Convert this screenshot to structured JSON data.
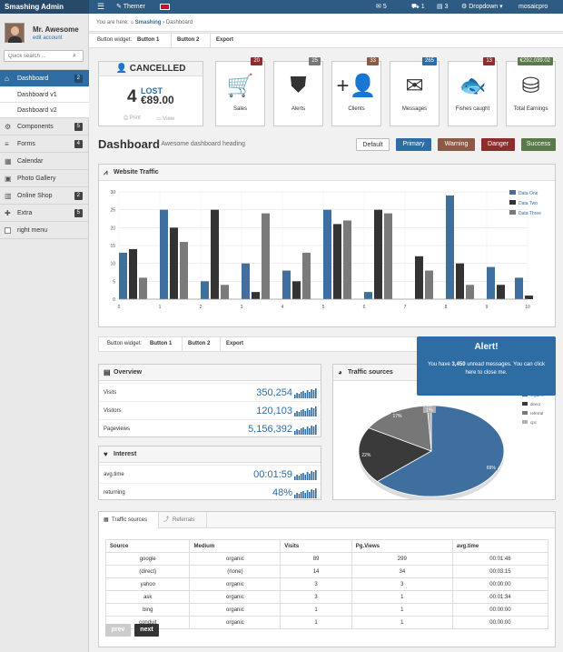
{
  "topbar": {
    "brand": "Smashing Admin",
    "themer": "Themer",
    "mail_count": "5",
    "cart_count": "1",
    "doc_count": "3",
    "dropdown": "Dropdown",
    "user": "mosaicpro"
  },
  "sidebar": {
    "user_name": "Mr. Awesome",
    "edit_account": "edit account",
    "search_placeholder": "Quick search ...",
    "items": [
      {
        "label": "Dashboard",
        "count": "2"
      },
      {
        "label": "Components",
        "count": "5"
      },
      {
        "label": "Forms",
        "count": "4"
      },
      {
        "label": "Calendar",
        "count": ""
      },
      {
        "label": "Photo Gallery",
        "count": ""
      },
      {
        "label": "Online Shop",
        "count": "2"
      },
      {
        "label": "Extra",
        "count": "5"
      }
    ],
    "subitems": [
      "Dashboard v1",
      "Dashboard v2"
    ],
    "right_menu": "right menu"
  },
  "breadcrumb": {
    "prefix": "You are here:",
    "home": "Smashing",
    "current": "Dashboard"
  },
  "button_widget": {
    "label": "Button widget:",
    "b1": "Button 1",
    "b2": "Button 2",
    "b3": "Export"
  },
  "cancelled": {
    "title": "CANCELLED",
    "number": "4",
    "lost": "LOST",
    "amount": "€89.00",
    "print": "Print",
    "view": "View"
  },
  "tiles": [
    {
      "label": "Sales",
      "badge": "20",
      "icon": "cart-icon"
    },
    {
      "label": "Alerts",
      "badge": "25",
      "icon": "shield-icon"
    },
    {
      "label": "Clients",
      "badge": "33",
      "icon": "user-add-icon"
    },
    {
      "label": "Messages",
      "badge": "265",
      "icon": "envelope-icon"
    },
    {
      "label": "Fishes caught",
      "badge": "13",
      "icon": "fish-icon"
    },
    {
      "label": "Total Earnings",
      "badge": "€292,039.02",
      "icon": "coins-icon"
    }
  ],
  "heading": {
    "title": "Dashboard",
    "subtitle": "| Awesome dashboard heading"
  },
  "pills": [
    {
      "label": "Default",
      "color": "#ffffff"
    },
    {
      "label": "Primary",
      "color": "#2e6da4"
    },
    {
      "label": "Warning",
      "color": "#8a5a44"
    },
    {
      "label": "Danger",
      "color": "#8a2e2e"
    },
    {
      "label": "Success",
      "color": "#5a7a4a"
    }
  ],
  "traffic": {
    "title": "Website Traffic"
  },
  "chart_data": {
    "type": "bar",
    "categories": [
      "0",
      "1",
      "2",
      "3",
      "4",
      "5",
      "6",
      "7",
      "8",
      "9",
      "10"
    ],
    "ylim": [
      0,
      30
    ],
    "yticks": [
      "0",
      "5",
      "10",
      "15",
      "20",
      "25",
      "30"
    ],
    "series": [
      {
        "name": "Data One",
        "color": "#3f6f9f",
        "values": [
          13,
          25,
          5,
          10,
          8,
          25,
          2,
          0,
          29,
          9,
          6
        ]
      },
      {
        "name": "Data Two",
        "color": "#333333",
        "values": [
          14,
          20,
          25,
          2,
          5,
          21,
          25,
          12,
          10,
          4,
          1
        ]
      },
      {
        "name": "Data Three",
        "color": "#7a7a7a",
        "values": [
          6,
          16,
          4,
          24,
          13,
          22,
          24,
          8,
          4,
          0,
          0
        ]
      }
    ]
  },
  "overview": {
    "title": "Overview",
    "rows": [
      {
        "label": "Visits",
        "value": "350,254"
      },
      {
        "label": "Visitors",
        "value": "120,103"
      },
      {
        "label": "Pageviews",
        "value": "5,156,392"
      }
    ]
  },
  "interest": {
    "title": "Interest",
    "rows": [
      {
        "label": "avg.time",
        "value": "00:01:59"
      },
      {
        "label": "returning",
        "value": "48%"
      }
    ]
  },
  "traffic_sources": {
    "title": "Traffic sources",
    "pie": {
      "type": "pie",
      "slices": [
        {
          "name": "organic",
          "value": 69,
          "color": "#3f6f9f"
        },
        {
          "name": "direct",
          "value": 22,
          "color": "#3a3a3a"
        },
        {
          "name": "referral",
          "value": 17,
          "color": "#777777"
        },
        {
          "name": "cpc",
          "value": 1,
          "color": "#b0b0b0"
        }
      ],
      "labels": [
        "69%",
        "22%",
        "17%",
        "1%"
      ]
    }
  },
  "alert": {
    "title": "Alert!",
    "pre": "You have",
    "bold": "3,450",
    "post": "unread messages. You can click here to close me."
  },
  "table_tabs": {
    "t1": "Traffic sources",
    "t2": "Referrals"
  },
  "table": {
    "headers": [
      "Source",
      "Medium",
      "Visits",
      "Pg.Views",
      "avg.time"
    ],
    "rows": [
      [
        "google",
        "organic",
        "89",
        "299",
        "00:01:48"
      ],
      [
        "(direct)",
        "(none)",
        "14",
        "34",
        "00:03:15"
      ],
      [
        "yahoo",
        "organic",
        "3",
        "3",
        "00:00:00"
      ],
      [
        "ask",
        "organic",
        "3",
        "1",
        "00:01:34"
      ],
      [
        "bing",
        "organic",
        "1",
        "1",
        "00:00:00"
      ],
      [
        "conduit",
        "organic",
        "1",
        "1",
        "00:00:00"
      ]
    ]
  },
  "pager": {
    "prev": "prev",
    "next": "next"
  }
}
